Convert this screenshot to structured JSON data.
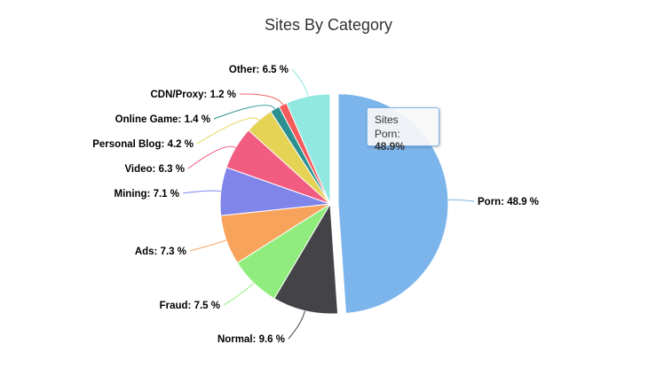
{
  "chart_data": {
    "type": "pie",
    "title": "Sites By Category",
    "series_name": "Sites",
    "categories": [
      "Porn",
      "Normal",
      "Fraud",
      "Ads",
      "Mining",
      "Video",
      "Personal Blog",
      "Online Game",
      "CDN/Proxy",
      "Other"
    ],
    "values": [
      48.9,
      9.6,
      7.5,
      7.3,
      7.1,
      6.3,
      4.2,
      1.4,
      1.2,
      6.5
    ],
    "labels": [
      "Porn: 48.9 %",
      "Normal: 9.6 %",
      "Fraud: 7.5 %",
      "Ads: 7.3 %",
      "Mining: 7.1 %",
      "Video: 6.3 %",
      "Personal Blog: 4.2 %",
      "Online Game: 1.4 %",
      "CDN/Proxy: 1.2 %",
      "Other: 6.5 %"
    ],
    "colors": [
      "#7cb5ec",
      "#434348",
      "#90ed7d",
      "#f7a35c",
      "#8085e9",
      "#f15c80",
      "#e4d354",
      "#2b908f",
      "#f45b5b",
      "#91e8e1"
    ],
    "selected": "Porn"
  },
  "tooltip": {
    "series": "Sites",
    "point_label": "Porn: ",
    "point_value": "48.9%"
  }
}
